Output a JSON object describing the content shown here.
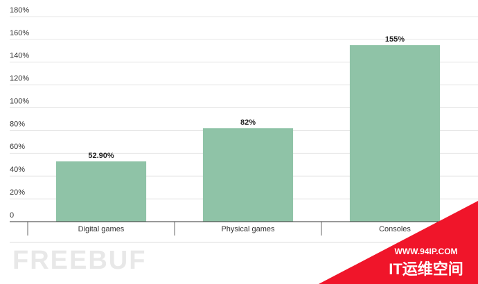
{
  "chart_data": {
    "type": "bar",
    "categories": [
      "Digital games",
      "Physical games",
      "Consoles"
    ],
    "values": [
      52.9,
      82,
      155
    ],
    "value_labels": [
      "52.90%",
      "82%",
      "155%"
    ],
    "color": "#8fc3a7",
    "ylim": [
      0,
      180
    ],
    "yticks": [
      0,
      {
        "value": 20,
        "label": "20%"
      },
      {
        "value": 40,
        "label": "40%"
      },
      {
        "value": 60,
        "label": "60%"
      },
      {
        "value": 80,
        "label": "80%"
      },
      {
        "value": 100,
        "label": "100%"
      },
      {
        "value": 120,
        "label": "120%"
      },
      {
        "value": 140,
        "label": "140%"
      },
      {
        "value": 160,
        "label": "160%"
      },
      {
        "value": 180,
        "label": "180%"
      }
    ],
    "grid": true
  },
  "watermarks": [
    "FREEBUF",
    "WWW.94IP.COM",
    "IT运维空间"
  ]
}
